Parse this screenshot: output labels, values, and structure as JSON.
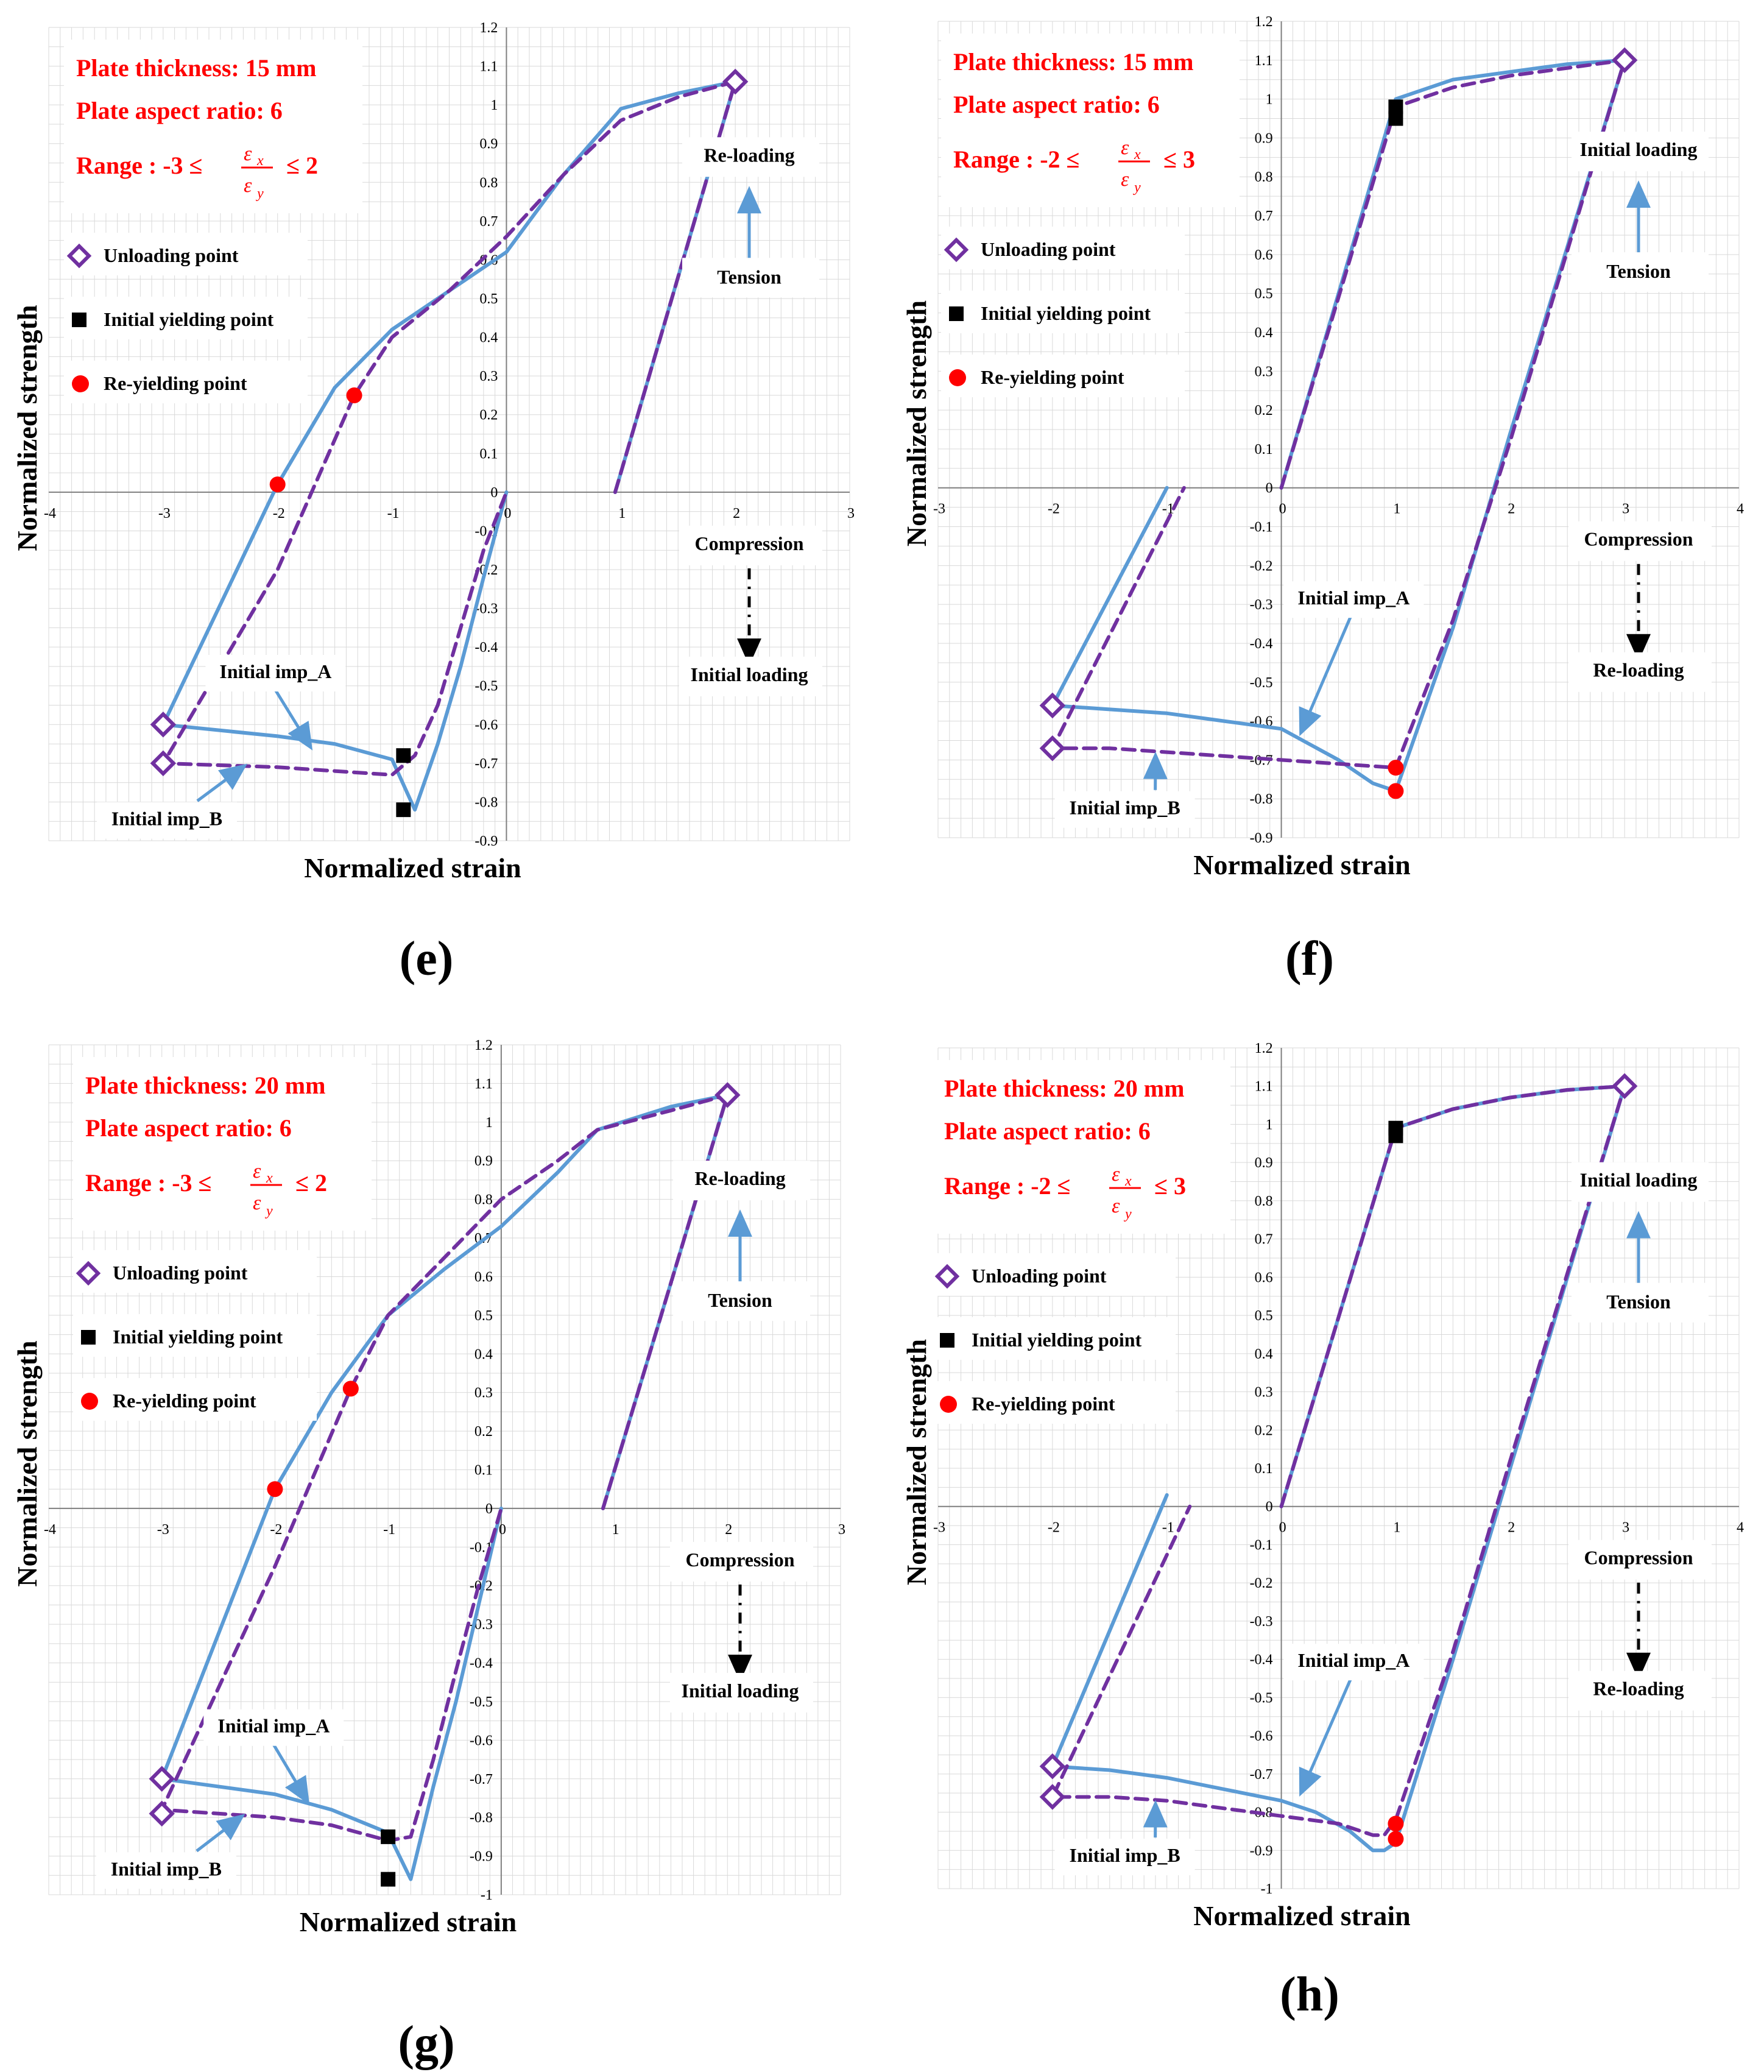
{
  "colors": {
    "blue": "#5b9bd5",
    "purple": "#7030a0",
    "red": "#ff0000",
    "black": "#000000",
    "grid": "#d9d9d9"
  },
  "chart_data": [
    {
      "type": "line",
      "panel_label": "(e)",
      "xlabel": "Normalized  strain",
      "ylabel": "Normalized  strength",
      "xlim": [
        -4,
        3
      ],
      "ylim": [
        -0.9,
        1.2
      ],
      "xticks": [
        "-4",
        "-3",
        "-2",
        "-1",
        "0",
        "1",
        "2",
        "3"
      ],
      "yticks": [
        "1.2",
        "1.1",
        "1",
        "0.9",
        "0.8",
        "0.7",
        "0.6",
        "0.5",
        "0.4",
        "0.3",
        "0.2",
        "0.1",
        "0",
        "-0.1",
        "-0.2",
        "-0.3",
        "-0.4",
        "-0.5",
        "-0.6",
        "-0.7",
        "-0.8",
        "-0.9"
      ],
      "info": [
        "Plate thickness: 15 mm",
        "Plate aspect ratio: 6"
      ],
      "range_text": {
        "prefix": "Range : -3 ≤",
        "num": "ε",
        "num_sub": "x",
        "den": "ε",
        "den_sub": "y",
        "suffix": "≤ 2"
      },
      "legend": [
        "Unloading point",
        "Initial yielding point",
        "Re-yielding point"
      ],
      "annotations": {
        "upper": "Re-loading",
        "upper_arrow": "Tension",
        "lower_arrow": "Compression",
        "lower": "Initial loading",
        "imp_a": "Initial imp_A",
        "imp_b": "Initial imp_B"
      },
      "series": [
        {
          "name": "Initial imp_A",
          "style": "solid",
          "color": "blue",
          "x": [
            0.95,
            2.0,
            1.5,
            1.0,
            0.5,
            0.0,
            -0.5,
            -1.0,
            -1.5,
            -2.0,
            -3.0,
            -2.0,
            -1.5,
            -1.0,
            -0.8,
            -0.6,
            -0.4,
            -0.2,
            0.0
          ],
          "y": [
            0.0,
            1.06,
            1.03,
            0.99,
            0.82,
            0.62,
            0.52,
            0.42,
            0.27,
            0.02,
            -0.6,
            -0.63,
            -0.65,
            -0.69,
            -0.82,
            -0.65,
            -0.45,
            -0.22,
            0.0
          ]
        },
        {
          "name": "Initial imp_B",
          "style": "dashed",
          "color": "purple",
          "x": [
            0.95,
            2.0,
            1.5,
            1.0,
            0.5,
            0.0,
            -0.5,
            -1.0,
            -1.33,
            -2.0,
            -3.0,
            -2.0,
            -1.5,
            -1.0,
            -0.8,
            -0.6,
            -0.4,
            -0.2,
            0.0
          ],
          "y": [
            0.0,
            1.06,
            1.02,
            0.96,
            0.82,
            0.66,
            0.52,
            0.4,
            0.25,
            -0.2,
            -0.7,
            -0.71,
            -0.72,
            -0.73,
            -0.68,
            -0.55,
            -0.35,
            -0.15,
            0.0
          ]
        }
      ],
      "markers": {
        "unloading": [
          [
            2.0,
            1.06
          ],
          [
            -3.0,
            -0.6
          ],
          [
            -3.0,
            -0.7
          ]
        ],
        "initial_yield": [
          [
            -0.9,
            -0.68
          ],
          [
            -0.9,
            -0.82
          ]
        ],
        "re_yield": [
          [
            -2.0,
            0.02
          ],
          [
            -1.33,
            0.25
          ]
        ]
      }
    },
    {
      "type": "line",
      "panel_label": "(f)",
      "xlabel": "Normalized  strain",
      "ylabel": "Normalized  strength",
      "xlim": [
        -3,
        4
      ],
      "ylim": [
        -0.9,
        1.2
      ],
      "xticks": [
        "-3",
        "-2",
        "-1",
        "0",
        "1",
        "2",
        "3",
        "4"
      ],
      "yticks": [
        "1.2",
        "1.1",
        "1",
        "0.9",
        "0.8",
        "0.7",
        "0.6",
        "0.5",
        "0.4",
        "0.3",
        "0.2",
        "0.1",
        "0",
        "-0.1",
        "-0.2",
        "-0.3",
        "-0.4",
        "-0.5",
        "-0.6",
        "-0.7",
        "-0.8",
        "-0.9"
      ],
      "info": [
        "Plate thickness: 15 mm",
        "Plate aspect ratio: 6"
      ],
      "range_text": {
        "prefix": "Range : -2 ≤",
        "num": "ε",
        "num_sub": "x",
        "den": "ε",
        "den_sub": "y",
        "suffix": "≤ 3"
      },
      "legend": [
        "Unloading point",
        "Initial yielding point",
        "Re-yielding point"
      ],
      "annotations": {
        "upper": "Initial loading",
        "upper_arrow": "Tension",
        "lower_arrow": "Compression",
        "lower": "Re-loading",
        "imp_a": "Initial imp_A",
        "imp_b": "Initial imp_B"
      },
      "series": [
        {
          "name": "Initial imp_A",
          "style": "solid",
          "color": "blue",
          "x": [
            0.0,
            1.0,
            1.5,
            2.0,
            2.5,
            3.0,
            2.0,
            1.5,
            1.0,
            0.8,
            0.5,
            0.0,
            -0.5,
            -1.0,
            -1.5,
            -2.0,
            -1.0
          ],
          "y": [
            0.0,
            1.0,
            1.05,
            1.07,
            1.09,
            1.1,
            0.14,
            -0.36,
            -0.78,
            -0.76,
            -0.7,
            -0.62,
            -0.6,
            -0.58,
            -0.57,
            -0.56,
            0.0
          ]
        },
        {
          "name": "Initial imp_B",
          "style": "dashed",
          "color": "purple",
          "x": [
            0.0,
            1.0,
            1.5,
            2.0,
            2.5,
            3.0,
            2.0,
            1.5,
            1.0,
            0.5,
            0.0,
            -0.5,
            -1.0,
            -1.5,
            -2.0,
            -0.85
          ],
          "y": [
            0.0,
            0.98,
            1.03,
            1.06,
            1.08,
            1.1,
            0.12,
            -0.34,
            -0.72,
            -0.71,
            -0.7,
            -0.69,
            -0.68,
            -0.67,
            -0.67,
            0.0
          ]
        }
      ],
      "markers": {
        "unloading": [
          [
            3.0,
            1.1
          ],
          [
            -2.0,
            -0.56
          ],
          [
            -2.0,
            -0.67
          ]
        ],
        "initial_yield": [
          [
            1.0,
            0.98
          ],
          [
            1.0,
            0.95
          ]
        ],
        "re_yield": [
          [
            1.0,
            -0.72
          ],
          [
            1.0,
            -0.78
          ]
        ]
      }
    },
    {
      "type": "line",
      "panel_label": "(g)",
      "xlabel": "Normalized  strain",
      "ylabel": "Normalized  strength",
      "xlim": [
        -4,
        3
      ],
      "ylim": [
        -1,
        1.2
      ],
      "xticks": [
        "-4",
        "-3",
        "-2",
        "-1",
        "0",
        "1",
        "2",
        "3"
      ],
      "yticks": [
        "1.2",
        "1.1",
        "1",
        "0.9",
        "0.8",
        "0.7",
        "0.6",
        "0.5",
        "0.4",
        "0.3",
        "0.2",
        "0.1",
        "0",
        "-0.1",
        "-0.2",
        "-0.3",
        "-0.4",
        "-0.5",
        "-0.6",
        "-0.7",
        "-0.8",
        "-0.9",
        "-1"
      ],
      "info": [
        "Plate thickness: 20 mm",
        "Plate aspect ratio: 6"
      ],
      "range_text": {
        "prefix": "Range : -3 ≤",
        "num": "ε",
        "num_sub": "x",
        "den": "ε",
        "den_sub": "y",
        "suffix": "≤ 2"
      },
      "legend": [
        "Unloading point",
        "Initial yielding point",
        "Re-yielding point"
      ],
      "annotations": {
        "upper": "Re-loading",
        "upper_arrow": "Tension",
        "lower_arrow": "Compression",
        "lower": "Initial loading",
        "imp_a": "Initial imp_A",
        "imp_b": "Initial imp_B"
      },
      "series": [
        {
          "name": "Initial imp_A",
          "style": "solid",
          "color": "blue",
          "x": [
            0.9,
            2.0,
            1.5,
            0.85,
            0.5,
            0.0,
            -0.5,
            -1.0,
            -1.5,
            -2.0,
            -3.0,
            -2.0,
            -1.5,
            -1.0,
            -0.8,
            -0.6,
            -0.4,
            -0.2,
            0.0
          ],
          "y": [
            0.0,
            1.07,
            1.04,
            0.98,
            0.87,
            0.73,
            0.62,
            0.5,
            0.3,
            0.05,
            -0.7,
            -0.74,
            -0.78,
            -0.84,
            -0.96,
            -0.72,
            -0.5,
            -0.25,
            0.0
          ]
        },
        {
          "name": "Initial imp_B",
          "style": "dashed",
          "color": "purple",
          "x": [
            0.9,
            2.0,
            1.5,
            0.85,
            0.5,
            0.0,
            -0.5,
            -1.0,
            -1.33,
            -2.0,
            -3.0,
            -2.0,
            -1.5,
            -1.0,
            -0.8,
            -0.6,
            -0.4,
            -0.2,
            0.0
          ],
          "y": [
            0.0,
            1.07,
            1.03,
            0.98,
            0.9,
            0.8,
            0.65,
            0.5,
            0.31,
            -0.15,
            -0.78,
            -0.8,
            -0.82,
            -0.86,
            -0.85,
            -0.65,
            -0.42,
            -0.2,
            0.0
          ]
        }
      ],
      "markers": {
        "unloading": [
          [
            2.0,
            1.07
          ],
          [
            -3.0,
            -0.7
          ],
          [
            -3.0,
            -0.79
          ]
        ],
        "initial_yield": [
          [
            -1.0,
            -0.85
          ],
          [
            -1.0,
            -0.96
          ]
        ],
        "re_yield": [
          [
            -2.0,
            0.05
          ],
          [
            -1.33,
            0.31
          ]
        ]
      }
    },
    {
      "type": "line",
      "panel_label": "(h)",
      "xlabel": "Normalized  strain",
      "ylabel": "Normalized  strength",
      "xlim": [
        -3,
        4
      ],
      "ylim": [
        -1,
        1.2
      ],
      "xticks": [
        "-3",
        "-2",
        "-1",
        "0",
        "1",
        "2",
        "3",
        "4"
      ],
      "yticks": [
        "1.2",
        "1.1",
        "1",
        "0.9",
        "0.8",
        "0.7",
        "0.6",
        "0.5",
        "0.4",
        "0.3",
        "0.2",
        "0.1",
        "0",
        "-0.1",
        "-0.2",
        "-0.3",
        "-0.4",
        "-0.5",
        "-0.6",
        "-0.7",
        "-0.8",
        "-0.9",
        "-1"
      ],
      "info": [
        "Plate thickness: 20 mm",
        "Plate aspect ratio: 6"
      ],
      "range_text": {
        "prefix": "Range : -2 ≤",
        "num": "ε",
        "num_sub": "x",
        "den": "ε",
        "den_sub": "y",
        "suffix": "≤ 3"
      },
      "legend": [
        "Unloading point",
        "Initial yielding point",
        "Re-yielding point"
      ],
      "annotations": {
        "upper": "Initial loading",
        "upper_arrow": "Tension",
        "lower_arrow": "Compression",
        "lower": "Re-loading",
        "imp_a": "Initial imp_A",
        "imp_b": "Initial imp_B"
      },
      "series": [
        {
          "name": "Initial imp_A",
          "style": "solid",
          "color": "blue",
          "x": [
            0.0,
            1.0,
            1.5,
            2.0,
            2.5,
            3.0,
            2.0,
            1.5,
            1.0,
            0.9,
            0.8,
            0.6,
            0.3,
            0.0,
            -0.5,
            -1.0,
            -1.5,
            -2.0,
            -1.0
          ],
          "y": [
            0.0,
            0.99,
            1.04,
            1.07,
            1.09,
            1.1,
            0.1,
            -0.4,
            -0.88,
            -0.9,
            -0.9,
            -0.85,
            -0.8,
            -0.77,
            -0.74,
            -0.71,
            -0.69,
            -0.68,
            0.03
          ]
        },
        {
          "name": "Initial imp_B",
          "style": "dashed",
          "color": "purple",
          "x": [
            0.0,
            1.0,
            1.5,
            2.0,
            2.5,
            3.0,
            2.0,
            1.5,
            1.0,
            0.9,
            0.8,
            0.5,
            0.0,
            -0.5,
            -1.0,
            -1.5,
            -2.0,
            -0.8
          ],
          "y": [
            0.0,
            0.99,
            1.04,
            1.07,
            1.09,
            1.1,
            0.12,
            -0.38,
            -0.82,
            -0.86,
            -0.86,
            -0.83,
            -0.81,
            -0.79,
            -0.77,
            -0.76,
            -0.76,
            0.0
          ]
        }
      ],
      "markers": {
        "unloading": [
          [
            3.0,
            1.1
          ],
          [
            -2.0,
            -0.68
          ],
          [
            -2.0,
            -0.76
          ]
        ],
        "initial_yield": [
          [
            1.0,
            0.99
          ],
          [
            1.0,
            0.97
          ]
        ],
        "re_yield": [
          [
            1.0,
            -0.83
          ],
          [
            1.0,
            -0.87
          ]
        ]
      }
    }
  ]
}
